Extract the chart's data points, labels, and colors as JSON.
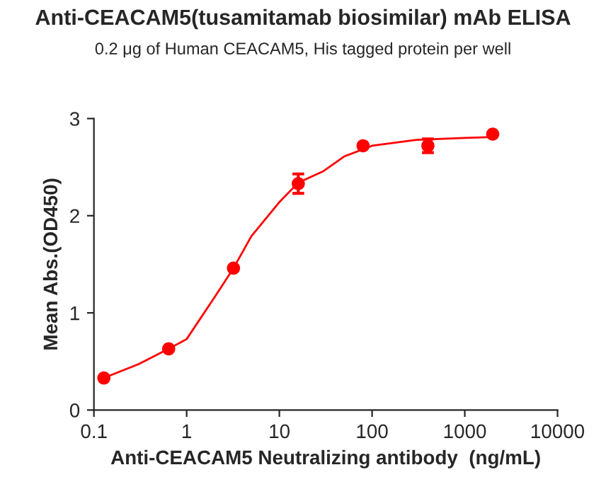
{
  "chart_data": {
    "type": "scatter",
    "title": "Anti-CEACAM5(tusamitamab biosimilar) mAb ELISA",
    "subtitle": "0.2 μg of Human CEACAM5, His tagged protein per well",
    "xlabel": "Anti-CEACAM5 Neutralizing antibody  (ng/mL)",
    "ylabel": "Mean Abs.(OD450)",
    "log": "x",
    "xlim": [
      0.1,
      10000
    ],
    "xticks": [
      0.1,
      1,
      10,
      100,
      1000,
      10000
    ],
    "ylim": [
      0,
      3
    ],
    "yticks": [
      0,
      1,
      2,
      3
    ],
    "grid": false,
    "legend": false,
    "series": [
      {
        "color": "#ff0000",
        "marker": "circle",
        "x": [
          0.128,
          0.64,
          3.2,
          16,
          80,
          400,
          2000
        ],
        "values": [
          0.33,
          0.63,
          1.46,
          2.33,
          2.72,
          2.72,
          2.84
        ],
        "errors": [
          null,
          null,
          null,
          0.1,
          null,
          0.07,
          null
        ]
      },
      {
        "type": "line",
        "color": "#ff0000",
        "marker": "none",
        "line_style": "solid",
        "x": [
          0.128,
          0.3,
          0.64,
          1,
          2,
          3.2,
          5,
          10,
          16,
          30,
          50,
          100,
          300,
          1000,
          2000
        ],
        "values": [
          0.33,
          0.47,
          0.63,
          0.73,
          1.16,
          1.46,
          1.79,
          2.14,
          2.34,
          2.46,
          2.61,
          2.72,
          2.78,
          2.8,
          2.81
        ]
      }
    ]
  }
}
